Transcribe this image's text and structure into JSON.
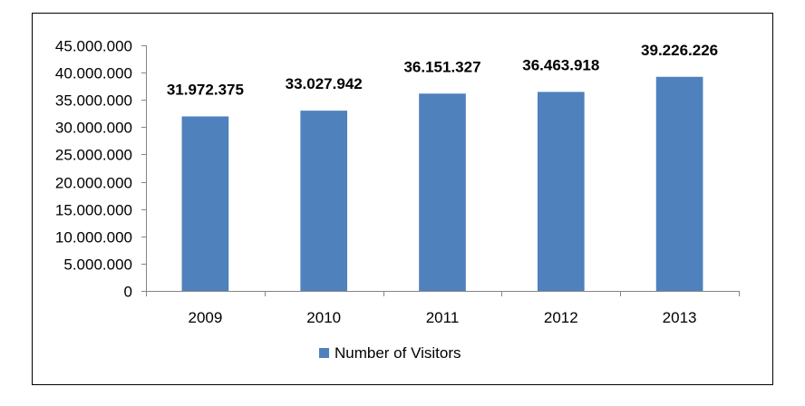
{
  "chart_data": {
    "type": "bar",
    "title": "",
    "xlabel": "",
    "ylabel": "",
    "categories": [
      "2009",
      "2010",
      "2011",
      "2012",
      "2013"
    ],
    "series": [
      {
        "name": "Number of Visitors",
        "values": [
          31972375,
          33027942,
          36151327,
          36463918,
          39226226
        ],
        "data_labels": [
          "31.972.375",
          "33.027.942",
          "36.151.327",
          "36.463.918",
          "39.226.226"
        ],
        "color": "#4f81bd"
      }
    ],
    "ylim": [
      0,
      45000000
    ],
    "y_ticks": [
      0,
      5000000,
      10000000,
      15000000,
      20000000,
      25000000,
      30000000,
      35000000,
      40000000,
      45000000
    ],
    "y_tick_labels": [
      "0",
      "5.000.000",
      "10.000.000",
      "15.000.000",
      "20.000.000",
      "25.000.000",
      "30.000.000",
      "35.000.000",
      "40.000.000",
      "45.000.000"
    ],
    "grid": false,
    "legend_position": "bottom",
    "colors": {
      "bar": "#4f81bd",
      "axis": "#868686",
      "border": "#000000",
      "text": "#000000"
    }
  }
}
